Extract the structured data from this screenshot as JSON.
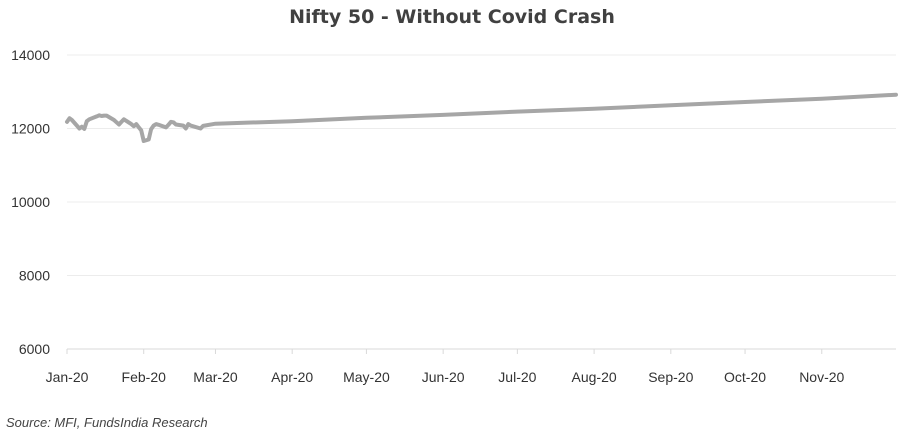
{
  "chart_data": {
    "type": "line",
    "title": "Nifty 50 - Without Covid Crash",
    "xlabel": "",
    "ylabel": "",
    "ylim": [
      6000,
      14000
    ],
    "yticks": [
      6000,
      8000,
      10000,
      12000,
      14000
    ],
    "categories": [
      "Jan-20",
      "Feb-20",
      "Mar-20",
      "Apr-20",
      "May-20",
      "Jun-20",
      "Jul-20",
      "Aug-20",
      "Sep-20",
      "Oct-20",
      "Nov-20"
    ],
    "grid": true,
    "line_color": "#a6a6a6",
    "series": [
      {
        "name": "",
        "x": [
          "2020-01-01",
          "2020-01-02",
          "2020-01-03",
          "2020-01-06",
          "2020-01-07",
          "2020-01-08",
          "2020-01-09",
          "2020-01-10",
          "2020-01-13",
          "2020-01-14",
          "2020-01-15",
          "2020-01-16",
          "2020-01-17",
          "2020-01-20",
          "2020-01-21",
          "2020-01-22",
          "2020-01-23",
          "2020-01-24",
          "2020-01-27",
          "2020-01-28",
          "2020-01-29",
          "2020-01-30",
          "2020-01-31",
          "2020-02-01",
          "2020-02-03",
          "2020-02-04",
          "2020-02-05",
          "2020-02-06",
          "2020-02-07",
          "2020-02-10",
          "2020-02-11",
          "2020-02-12",
          "2020-02-13",
          "2020-02-14",
          "2020-02-17",
          "2020-02-18",
          "2020-02-19",
          "2020-02-20",
          "2020-02-24",
          "2020-02-25",
          "2020-03-01",
          "2020-04-01",
          "2020-05-01",
          "2020-06-01",
          "2020-07-01",
          "2020-08-01",
          "2020-09-01",
          "2020-10-01",
          "2020-11-01",
          "2020-12-01"
        ],
        "values": [
          12180,
          12280,
          12230,
          12000,
          12050,
          11990,
          12200,
          12250,
          12330,
          12360,
          12340,
          12350,
          12350,
          12230,
          12170,
          12110,
          12180,
          12250,
          12120,
          12060,
          12120,
          12030,
          11950,
          11660,
          11700,
          11980,
          12080,
          12120,
          12100,
          12030,
          12100,
          12180,
          12170,
          12110,
          12080,
          12000,
          12120,
          12080,
          12000,
          12070,
          12130,
          12200,
          12290,
          12370,
          12460,
          12540,
          12630,
          12720,
          12810,
          12920
        ]
      }
    ]
  },
  "source_text": "Source: MFI, FundsIndia Research"
}
